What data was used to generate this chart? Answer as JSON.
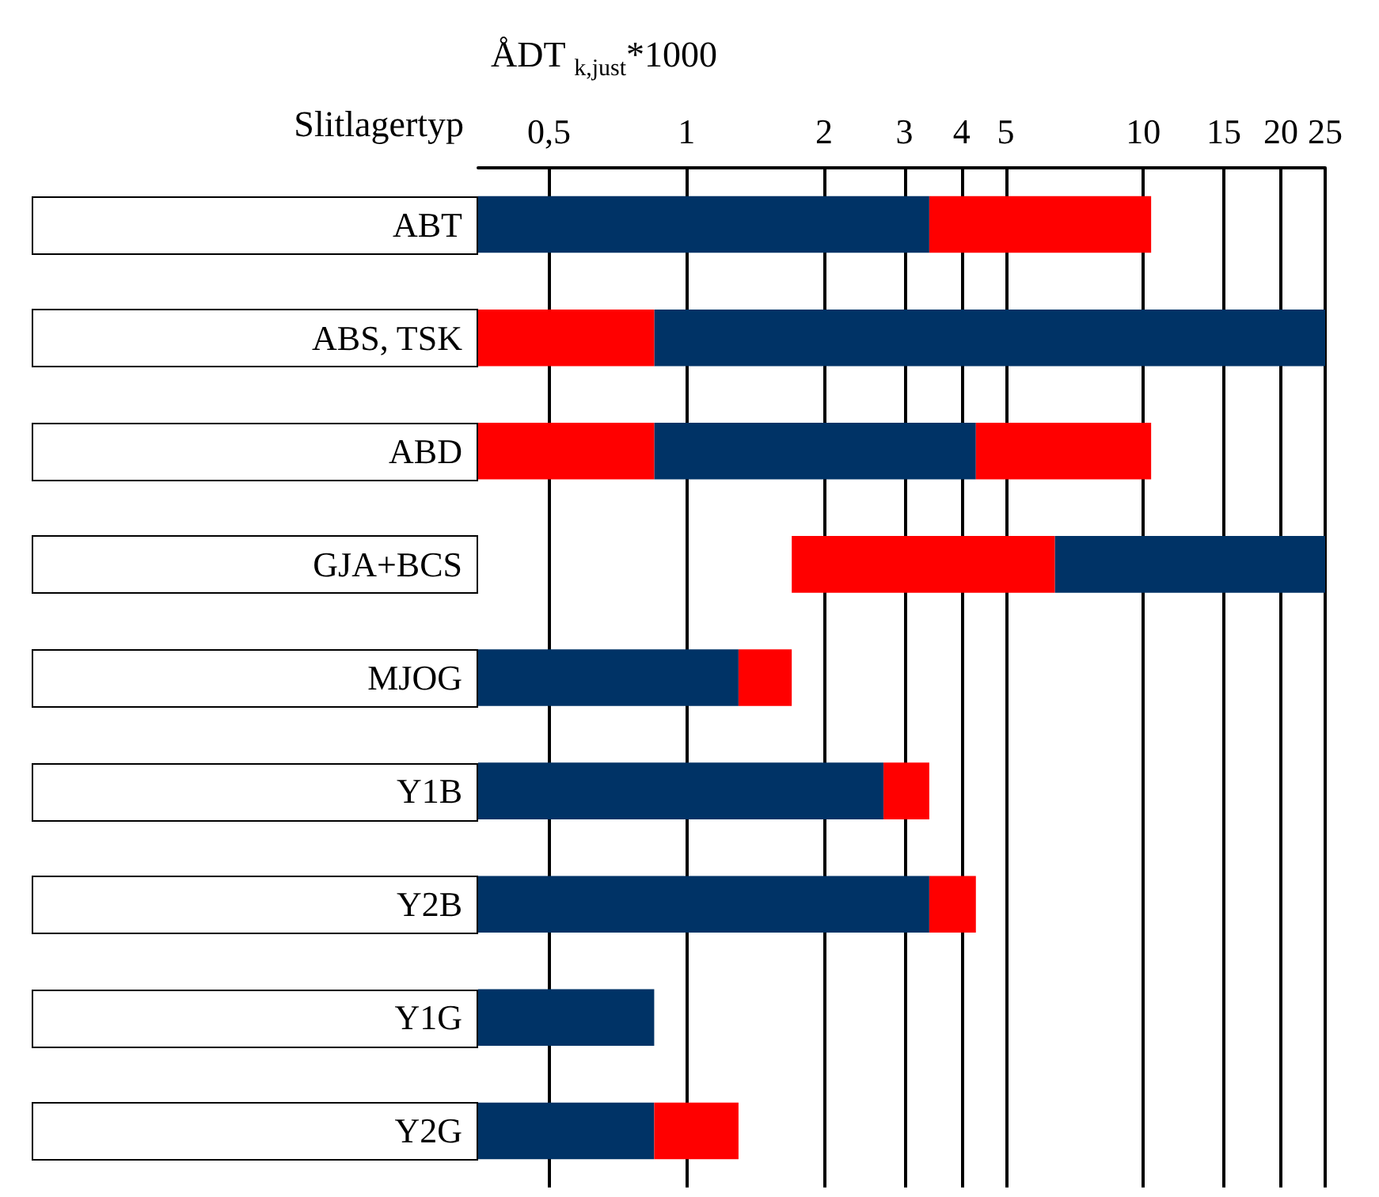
{
  "chart_data": {
    "type": "bar",
    "orientation": "horizontal",
    "ylabel": "Slitlagertyp",
    "xlabel": "ÅDT $_{k,just}$*1000",
    "categories": [
      "ABT",
      "ABS, TSK",
      "ABD",
      "GJA+BCS",
      "MJOG",
      "Y1B",
      "Y2B",
      "Y1G",
      "Y2G"
    ],
    "series": [
      {
        "color": "#003366",
        "base": [
          0.35,
          0.85,
          0.85,
          6.4,
          0.35,
          0.35,
          0.35,
          0.35,
          0.35
        ],
        "values": [
          3.05,
          24.15,
          3.45,
          18.6,
          0.95,
          2.35,
          3.05,
          0.5,
          0.5
        ]
      },
      {
        "color": "#ff0000",
        "base": [
          3.4,
          0.35,
          0.35,
          1.7,
          1.3,
          2.7,
          3.4,
          null,
          0.85
        ],
        "values": [
          7,
          0.5,
          0.5,
          4.7,
          0.4,
          0.7,
          0.9,
          null,
          0.45
        ]
      },
      {
        "color": "#ff0000",
        "base": [
          null,
          null,
          4.3,
          null,
          null,
          null,
          null,
          null,
          null
        ],
        "values": [
          null,
          null,
          6.1,
          null,
          null,
          null,
          null,
          null,
          null
        ]
      }
    ],
    "log": "x",
    "xlim": [
      0.35,
      25
    ],
    "xticks": [
      {
        "value": 0.5,
        "label": "0,5"
      },
      1,
      2,
      3,
      4,
      5,
      10,
      15,
      20,
      25
    ],
    "grid": "x"
  }
}
